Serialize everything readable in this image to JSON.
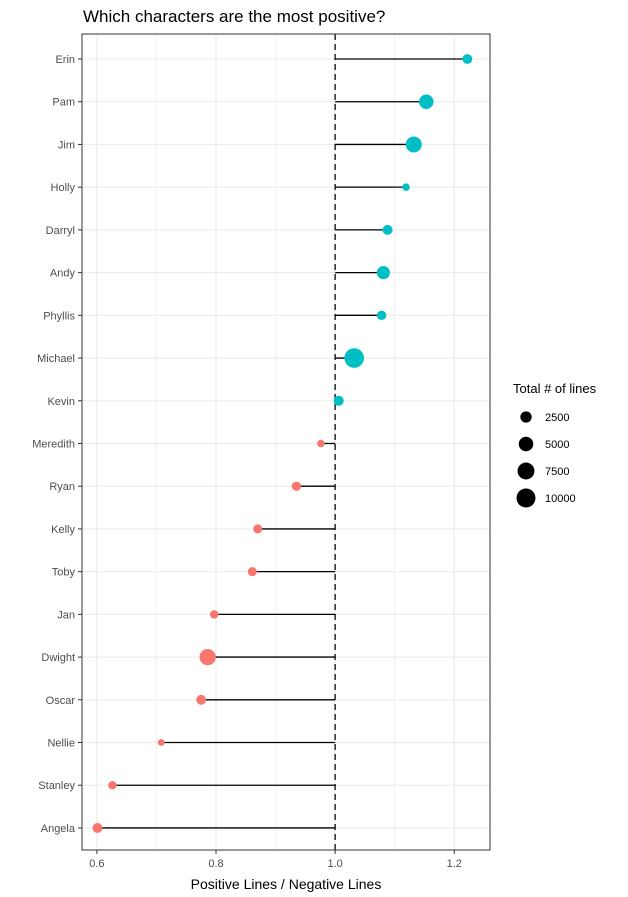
{
  "chart_data": {
    "type": "lollipop",
    "title": "Which characters are the most positive?",
    "xlabel": "Positive Lines / Negative Lines",
    "ylabel": "",
    "xlim": [
      0.575,
      1.26
    ],
    "xticks": [
      0.6,
      0.8,
      1.0,
      1.2
    ],
    "xtick_labels": [
      "0.6",
      "0.8",
      "1.0",
      "1.2"
    ],
    "reference_line": 1.0,
    "colors": {
      "positive": "#00BFC4",
      "negative": "#F8766D",
      "stem": "#000000",
      "grid": "#ebebeb",
      "panel_border": "#333333"
    },
    "characters": [
      {
        "name": "Erin",
        "ratio": 1.222,
        "lines": 1600
      },
      {
        "name": "Pam",
        "ratio": 1.153,
        "lines": 5000
      },
      {
        "name": "Jim",
        "ratio": 1.132,
        "lines": 6500
      },
      {
        "name": "Holly",
        "ratio": 1.119,
        "lines": 600
      },
      {
        "name": "Darryl",
        "ratio": 1.088,
        "lines": 1700
      },
      {
        "name": "Andy",
        "ratio": 1.081,
        "lines": 3800
      },
      {
        "name": "Phyllis",
        "ratio": 1.078,
        "lines": 1400
      },
      {
        "name": "Michael",
        "ratio": 1.032,
        "lines": 10900
      },
      {
        "name": "Kevin",
        "ratio": 1.006,
        "lines": 1700
      },
      {
        "name": "Meredith",
        "ratio": 0.976,
        "lines": 600
      },
      {
        "name": "Ryan",
        "ratio": 0.935,
        "lines": 1300
      },
      {
        "name": "Kelly",
        "ratio": 0.87,
        "lines": 1200
      },
      {
        "name": "Toby",
        "ratio": 0.861,
        "lines": 1200
      },
      {
        "name": "Jan",
        "ratio": 0.797,
        "lines": 1000
      },
      {
        "name": "Dwight",
        "ratio": 0.786,
        "lines": 6800
      },
      {
        "name": "Oscar",
        "ratio": 0.775,
        "lines": 1600
      },
      {
        "name": "Nellie",
        "ratio": 0.708,
        "lines": 400
      },
      {
        "name": "Stanley",
        "ratio": 0.626,
        "lines": 900
      },
      {
        "name": "Angela",
        "ratio": 0.601,
        "lines": 1600
      }
    ],
    "legend": {
      "title": "Total # of lines",
      "position": "right",
      "entries": [
        {
          "label": "2500",
          "value": 2500
        },
        {
          "label": "5000",
          "value": 5000
        },
        {
          "label": "7500",
          "value": 7500
        },
        {
          "label": "10000",
          "value": 10000
        }
      ]
    }
  }
}
